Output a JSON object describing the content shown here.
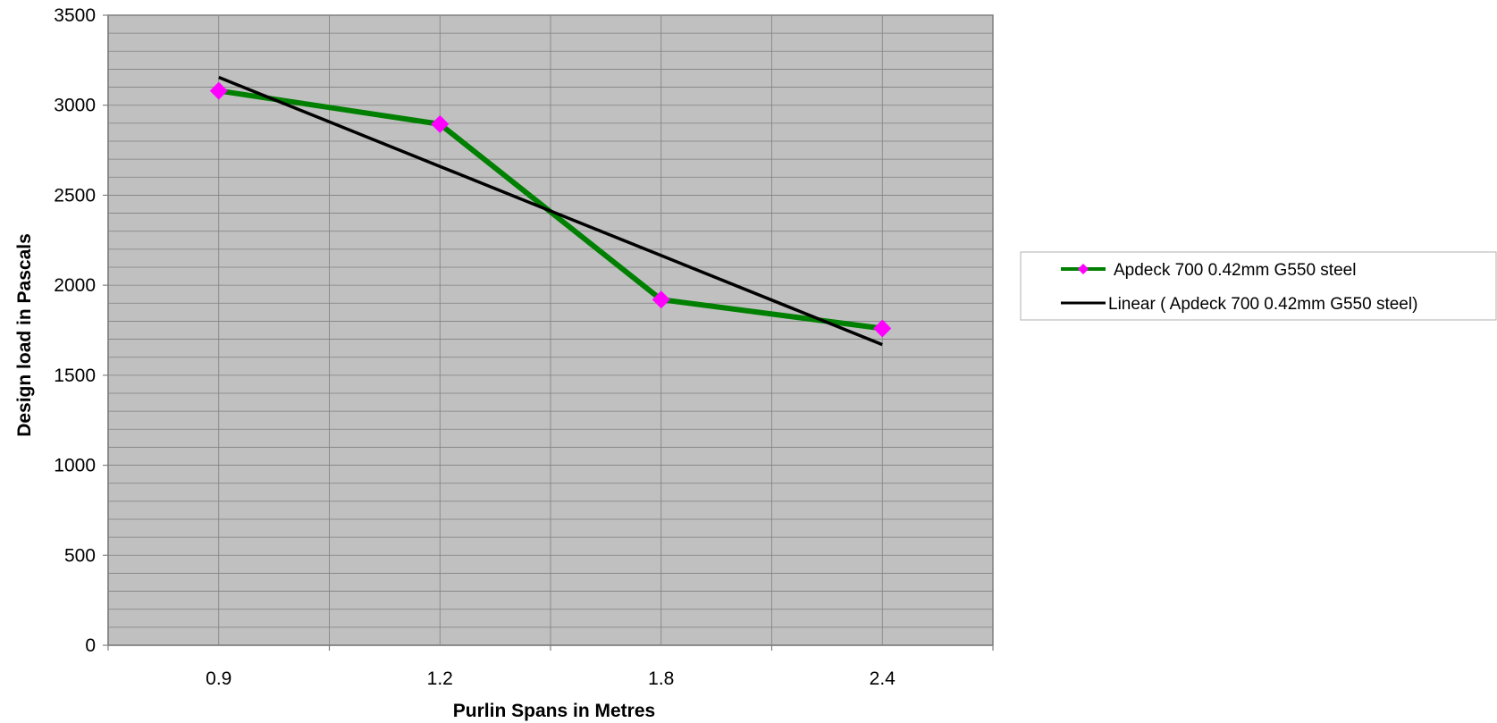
{
  "chart_data": {
    "type": "line",
    "categories": [
      "0.9",
      "1.2",
      "1.8",
      "2.4"
    ],
    "series": [
      {
        "name": "Apdeck 700 0.42mm G550 steel",
        "values": [
          3080,
          2895,
          1920,
          1760
        ],
        "color": "#008000",
        "marker_color": "#ff00ff",
        "marker": "diamond"
      },
      {
        "name": "Linear ( Apdeck 700 0.42mm G550 steel)",
        "trendline": true,
        "values": [
          3155,
          2660,
          2165,
          1670
        ],
        "color": "#000000"
      }
    ],
    "xlabel": "Purlin Spans in Metres",
    "ylabel": "Design load in Pascals",
    "ylim": [
      0,
      3500
    ],
    "yticks": [
      0,
      500,
      1000,
      1500,
      2000,
      2500,
      3000,
      3500
    ],
    "y_minor_step": 100,
    "grid": true,
    "plot_background": "#c0c0c0",
    "legend_position": "right"
  }
}
